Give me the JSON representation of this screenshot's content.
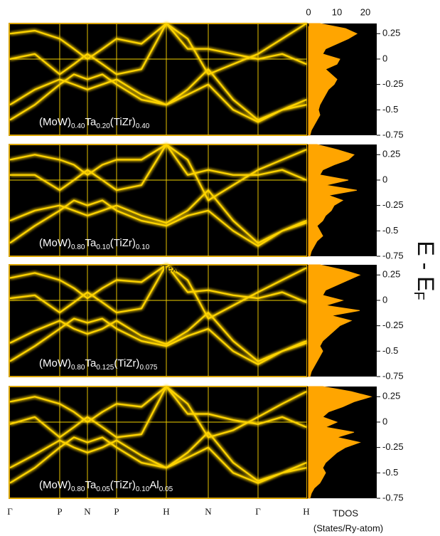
{
  "chart_data": [
    {
      "type": "band",
      "label_parts": [
        "(MoW)",
        "0.40",
        "Ta",
        "0.20",
        "(TiZr)",
        "0.40"
      ],
      "ylim": [
        -0.75,
        0.35
      ],
      "yticks": [
        0.25,
        0,
        -0.25,
        -0.5,
        -0.75
      ],
      "dos_xlim": [
        0,
        24
      ],
      "dos_xticks": [
        0,
        10,
        20
      ],
      "dos_color": "#ffa500",
      "k": [
        0,
        35,
        70,
        90,
        109,
        130,
        150,
        185,
        220,
        250,
        279,
        314,
        349,
        383,
        417
      ],
      "bands": [
        [
          -0.45,
          -0.3,
          -0.2,
          -0.25,
          -0.3,
          -0.25,
          -0.2,
          -0.35,
          -0.45,
          -0.3,
          -0.1,
          -0.4,
          -0.6,
          -0.5,
          -0.45
        ],
        [
          0,
          0.05,
          -0.15,
          -0.05,
          0.05,
          -0.05,
          -0.15,
          -0.1,
          0.35,
          0.1,
          0.1,
          0.05,
          0,
          0.05,
          -0.05
        ],
        [
          0.25,
          0.28,
          0.2,
          0.1,
          0,
          0.1,
          0.2,
          0.15,
          0.35,
          0.2,
          -0.15,
          -0.05,
          0.05,
          0.2,
          0.35
        ],
        [
          -0.6,
          -0.45,
          -0.25,
          -0.15,
          -0.2,
          -0.15,
          -0.25,
          -0.4,
          -0.45,
          -0.35,
          -0.25,
          -0.5,
          -0.62,
          -0.5,
          -0.4
        ]
      ],
      "energy": [
        -0.75,
        -0.7,
        -0.65,
        -0.6,
        -0.55,
        -0.5,
        -0.45,
        -0.4,
        -0.35,
        -0.3,
        -0.25,
        -0.2,
        -0.15,
        -0.1,
        -0.05,
        0,
        0.05,
        0.1,
        0.15,
        0.2,
        0.25,
        0.3,
        0.35
      ],
      "tdos": [
        0.5,
        1,
        2,
        3,
        4,
        3.5,
        4,
        5,
        6,
        7,
        9,
        10,
        8,
        6,
        10,
        11,
        5,
        6,
        10,
        14,
        17,
        13,
        4
      ]
    },
    {
      "type": "band",
      "label_parts": [
        "(MoW)",
        "0.80",
        "Ta",
        "0.10",
        "(TiZr)",
        "0.10"
      ],
      "ylim": [
        -0.75,
        0.35
      ],
      "yticks": [
        0.25,
        0,
        -0.25,
        -0.5,
        -0.75
      ],
      "dos_xlim": [
        0,
        24
      ],
      "dos_color": "#ffa500",
      "k": [
        0,
        35,
        70,
        90,
        109,
        130,
        150,
        185,
        220,
        250,
        279,
        314,
        349,
        383,
        417
      ],
      "bands": [
        [
          -0.4,
          -0.3,
          -0.25,
          -0.3,
          -0.35,
          -0.3,
          -0.25,
          -0.35,
          -0.42,
          -0.3,
          -0.1,
          -0.4,
          -0.62,
          -0.5,
          -0.4
        ],
        [
          0.05,
          0.05,
          -0.1,
          0,
          0.1,
          0,
          -0.1,
          -0.05,
          0.35,
          0.05,
          0.1,
          0.05,
          0.05,
          0.1,
          0
        ],
        [
          0.2,
          0.25,
          0.2,
          0.15,
          0.05,
          0.15,
          0.2,
          0.2,
          0.35,
          0.2,
          -0.2,
          -0.05,
          0.1,
          0.2,
          0.3
        ],
        [
          -0.62,
          -0.45,
          -0.3,
          -0.2,
          -0.25,
          -0.2,
          -0.3,
          -0.4,
          -0.45,
          -0.35,
          -0.3,
          -0.5,
          -0.65,
          -0.5,
          -0.42
        ]
      ],
      "energy": [
        -0.75,
        -0.7,
        -0.65,
        -0.6,
        -0.55,
        -0.5,
        -0.45,
        -0.4,
        -0.35,
        -0.3,
        -0.25,
        -0.2,
        -0.15,
        -0.1,
        -0.05,
        0,
        0.05,
        0.1,
        0.15,
        0.2,
        0.25,
        0.3,
        0.35
      ],
      "tdos": [
        0.5,
        1,
        2,
        3,
        5,
        4,
        3,
        5,
        6,
        8,
        9,
        12,
        7,
        17,
        6,
        14,
        4,
        5,
        9,
        14,
        16,
        10,
        3
      ]
    },
    {
      "type": "band",
      "label_parts": [
        "(MoW)",
        "0.80",
        "Ta",
        "0.125",
        "(TiZr)",
        "0.075"
      ],
      "ylim": [
        -0.75,
        0.35
      ],
      "yticks": [
        0.25,
        0,
        -0.25,
        -0.5,
        -0.75
      ],
      "dos_xlim": [
        0,
        24
      ],
      "dos_color": "#ffa500",
      "k": [
        0,
        35,
        70,
        90,
        109,
        130,
        150,
        185,
        220,
        250,
        279,
        314,
        349,
        383,
        417
      ],
      "bands": [
        [
          -0.42,
          -0.3,
          -0.2,
          -0.28,
          -0.33,
          -0.28,
          -0.2,
          -0.35,
          -0.43,
          -0.3,
          -0.12,
          -0.4,
          -0.6,
          -0.5,
          -0.42
        ],
        [
          0.02,
          0.05,
          -0.12,
          -0.02,
          0.08,
          -0.02,
          -0.12,
          -0.08,
          0.35,
          0.08,
          0.1,
          0.05,
          0.02,
          0.08,
          -0.02
        ],
        [
          0.22,
          0.27,
          0.2,
          0.12,
          0.02,
          0.12,
          0.2,
          0.18,
          0.35,
          0.2,
          -0.18,
          -0.05,
          0.08,
          0.2,
          0.32
        ],
        [
          -0.6,
          -0.45,
          -0.28,
          -0.18,
          -0.22,
          -0.18,
          -0.28,
          -0.4,
          -0.45,
          -0.35,
          -0.28,
          -0.5,
          -0.63,
          -0.5,
          -0.4
        ]
      ],
      "energy": [
        -0.75,
        -0.7,
        -0.65,
        -0.6,
        -0.55,
        -0.5,
        -0.45,
        -0.4,
        -0.35,
        -0.3,
        -0.25,
        -0.2,
        -0.15,
        -0.1,
        -0.05,
        0,
        0.05,
        0.1,
        0.15,
        0.2,
        0.25,
        0.3,
        0.35
      ],
      "tdos": [
        0.5,
        1,
        2,
        3,
        4,
        5,
        4,
        5,
        7,
        9,
        11,
        15,
        8,
        18,
        6,
        12,
        5,
        6,
        10,
        14,
        18,
        12,
        4
      ]
    },
    {
      "type": "band",
      "label_parts": [
        "(MoW)",
        "0.80",
        "Ta",
        "0.05",
        "(TiZr)",
        "0.10",
        "Al",
        "0.05"
      ],
      "ylim": [
        -0.75,
        0.35
      ],
      "yticks": [
        0.25,
        0,
        -0.25,
        -0.5,
        -0.75
      ],
      "dos_xlim": [
        0,
        24
      ],
      "dos_color": "#ffa500",
      "xticks": [
        {
          "value": 0,
          "label": "Γ"
        },
        {
          "value": 70,
          "label": "P"
        },
        {
          "value": 109,
          "label": "N"
        },
        {
          "value": 150,
          "label": "P"
        },
        {
          "value": 220,
          "label": "H"
        },
        {
          "value": 279,
          "label": "N"
        },
        {
          "value": 349,
          "label": "Γ"
        },
        {
          "value": 417,
          "label": "H"
        }
      ],
      "k": [
        0,
        35,
        70,
        90,
        109,
        130,
        150,
        185,
        220,
        250,
        279,
        314,
        349,
        383,
        417
      ],
      "bands": [
        [
          -0.45,
          -0.32,
          -0.18,
          -0.25,
          -0.3,
          -0.25,
          -0.18,
          -0.33,
          -0.45,
          -0.3,
          -0.1,
          -0.4,
          -0.58,
          -0.5,
          -0.45
        ],
        [
          -0.02,
          0.05,
          -0.15,
          -0.05,
          0.05,
          -0.05,
          -0.15,
          -0.12,
          0.35,
          0.08,
          0.08,
          0.02,
          -0.02,
          0.05,
          -0.05
        ],
        [
          0.2,
          0.25,
          0.18,
          0.1,
          0,
          0.1,
          0.18,
          0.15,
          0.35,
          0.18,
          -0.15,
          -0.08,
          0.05,
          0.18,
          0.3
        ],
        [
          -0.6,
          -0.45,
          -0.25,
          -0.15,
          -0.2,
          -0.15,
          -0.25,
          -0.4,
          -0.45,
          -0.35,
          -0.25,
          -0.5,
          -0.6,
          -0.5,
          -0.4
        ]
      ],
      "energy": [
        -0.75,
        -0.7,
        -0.65,
        -0.6,
        -0.55,
        -0.5,
        -0.45,
        -0.4,
        -0.35,
        -0.3,
        -0.25,
        -0.2,
        -0.15,
        -0.1,
        -0.05,
        0,
        0.05,
        0.1,
        0.15,
        0.2,
        0.25,
        0.3,
        0.35
      ],
      "tdos": [
        0.5,
        1,
        2,
        4,
        5,
        6,
        5,
        6,
        8,
        10,
        13,
        18,
        10,
        16,
        6,
        10,
        5,
        7,
        12,
        16,
        22,
        15,
        5
      ]
    }
  ],
  "figure": {
    "ylabel_parts": [
      "E - E",
      "F"
    ],
    "annotation": "Text",
    "dos_label": "TDOS",
    "dos_unit": "(States/Ry-atom)"
  }
}
